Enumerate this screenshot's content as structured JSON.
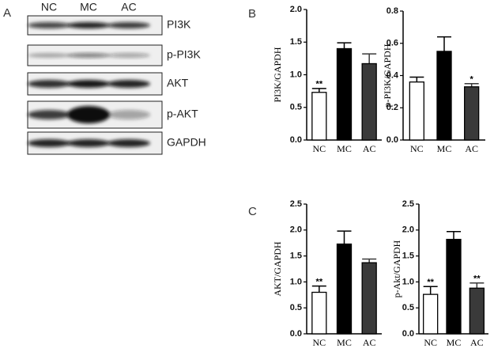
{
  "panel_labels": [
    "A",
    "B",
    "C"
  ],
  "blot": {
    "lanes": [
      "NC",
      "MC",
      "AC"
    ],
    "proteins": [
      "PI3K",
      "p-PI3K",
      "AKT",
      "p-AKT",
      "GAPDH"
    ]
  },
  "chart_data": [
    {
      "type": "bar",
      "y_label": "PI3K/GAPDH",
      "categories": [
        "NC",
        "MC",
        "AC"
      ],
      "values": [
        0.73,
        1.4,
        1.17
      ],
      "errors": [
        0.06,
        0.09,
        0.15
      ],
      "annotations": [
        "**",
        null,
        null
      ],
      "colors": [
        "#ffffff",
        "#000000",
        "#3a3a3a"
      ],
      "ylim": [
        0,
        2
      ],
      "yticks": [
        {
          "value": 0,
          "label": "0.0"
        },
        0.5,
        {
          "value": 1,
          "label": "1.0"
        },
        1.5,
        {
          "value": 2,
          "label": "2.0"
        }
      ]
    },
    {
      "type": "bar",
      "y_label": "p-PI3K/GAPDH",
      "categories": [
        "NC",
        "MC",
        "AC"
      ],
      "values": [
        0.36,
        0.55,
        0.33
      ],
      "errors": [
        0.03,
        0.09,
        0.02
      ],
      "annotations": [
        null,
        null,
        "*"
      ],
      "colors": [
        "#ffffff",
        "#000000",
        "#3a3a3a"
      ],
      "ylim": [
        0,
        0.8
      ],
      "yticks": [
        {
          "value": 0,
          "label": "0.0"
        },
        0.2,
        0.4,
        0.6,
        0.8
      ]
    },
    {
      "type": "bar",
      "y_label": "AKT/GAPDH",
      "categories": [
        "NC",
        "MC",
        "AC"
      ],
      "values": [
        0.8,
        1.73,
        1.37
      ],
      "errors": [
        0.12,
        0.25,
        0.07
      ],
      "annotations": [
        "**",
        null,
        null
      ],
      "colors": [
        "#ffffff",
        "#000000",
        "#3a3a3a"
      ],
      "ylim": [
        0,
        2.5
      ],
      "yticks": [
        {
          "value": 0,
          "label": "0.0"
        },
        0.5,
        {
          "value": 1,
          "label": "1.0"
        },
        1.5,
        {
          "value": 2,
          "label": "2.0"
        },
        2.5
      ]
    },
    {
      "type": "bar",
      "y_label": "p-Akt/GAPDH",
      "categories": [
        "NC",
        "MC",
        "AC"
      ],
      "values": [
        0.76,
        1.82,
        0.88
      ],
      "errors": [
        0.15,
        0.15,
        0.1
      ],
      "annotations": [
        "**",
        null,
        "**"
      ],
      "colors": [
        "#ffffff",
        "#000000",
        "#3a3a3a"
      ],
      "ylim": [
        0,
        2.5
      ],
      "yticks": [
        {
          "value": 0,
          "label": "0.0"
        },
        0.5,
        {
          "value": 1,
          "label": "1.0"
        },
        1.5,
        {
          "value": 2,
          "label": "2.0"
        },
        2.5
      ]
    }
  ]
}
